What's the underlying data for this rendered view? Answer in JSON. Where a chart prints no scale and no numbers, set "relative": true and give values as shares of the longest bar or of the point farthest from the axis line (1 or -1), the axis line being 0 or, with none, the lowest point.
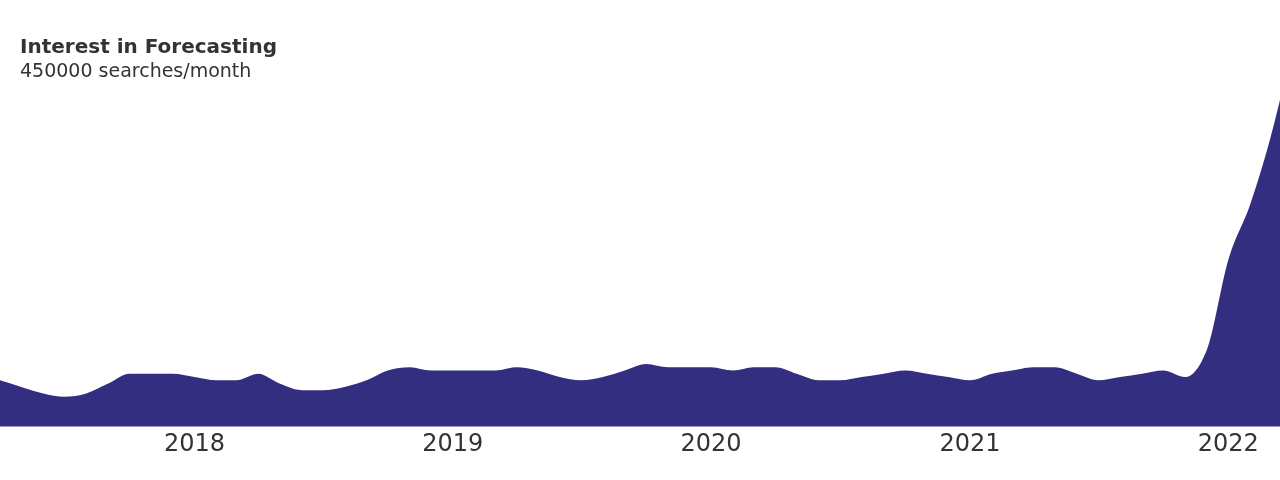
{
  "chart_data": {
    "type": "area",
    "title": "Interest in Forecasting",
    "subtitle": "450000 searches/month",
    "relative": true,
    "color": "#332e80",
    "x": [
      "2017-04",
      "2017-05",
      "2017-06",
      "2017-07",
      "2017-08",
      "2017-09",
      "2017-10",
      "2017-11",
      "2017-12",
      "2018-01",
      "2018-02",
      "2018-03",
      "2018-04",
      "2018-05",
      "2018-06",
      "2018-07",
      "2018-08",
      "2018-09",
      "2018-10",
      "2018-11",
      "2018-12",
      "2019-01",
      "2019-02",
      "2019-03",
      "2019-04",
      "2019-05",
      "2019-06",
      "2019-07",
      "2019-08",
      "2019-09",
      "2019-10",
      "2019-11",
      "2019-12",
      "2020-01",
      "2020-02",
      "2020-03",
      "2020-04",
      "2020-05",
      "2020-06",
      "2020-07",
      "2020-08",
      "2020-09",
      "2020-10",
      "2020-11",
      "2020-12",
      "2021-01",
      "2021-02",
      "2021-03",
      "2021-04",
      "2021-05",
      "2021-06",
      "2021-07",
      "2021-08",
      "2021-09",
      "2021-10",
      "2021-11",
      "2021-12",
      "2022-01",
      "2022-02",
      "2022-03",
      "2022-03-15"
    ],
    "values": [
      0.14,
      0.12,
      0.1,
      0.09,
      0.1,
      0.13,
      0.16,
      0.16,
      0.16,
      0.15,
      0.14,
      0.14,
      0.16,
      0.13,
      0.11,
      0.11,
      0.12,
      0.14,
      0.17,
      0.18,
      0.17,
      0.17,
      0.17,
      0.17,
      0.18,
      0.17,
      0.15,
      0.14,
      0.15,
      0.17,
      0.19,
      0.18,
      0.18,
      0.18,
      0.17,
      0.18,
      0.18,
      0.16,
      0.14,
      0.14,
      0.15,
      0.16,
      0.17,
      0.16,
      0.15,
      0.14,
      0.16,
      0.17,
      0.18,
      0.18,
      0.16,
      0.14,
      0.15,
      0.16,
      0.17,
      0.15,
      0.23,
      0.51,
      0.68,
      0.88,
      1
    ],
    "xlim": [
      "2017-04",
      "2022-03-15"
    ],
    "xticks": [
      "2018",
      "2019",
      "2020",
      "2021",
      "2022"
    ]
  }
}
